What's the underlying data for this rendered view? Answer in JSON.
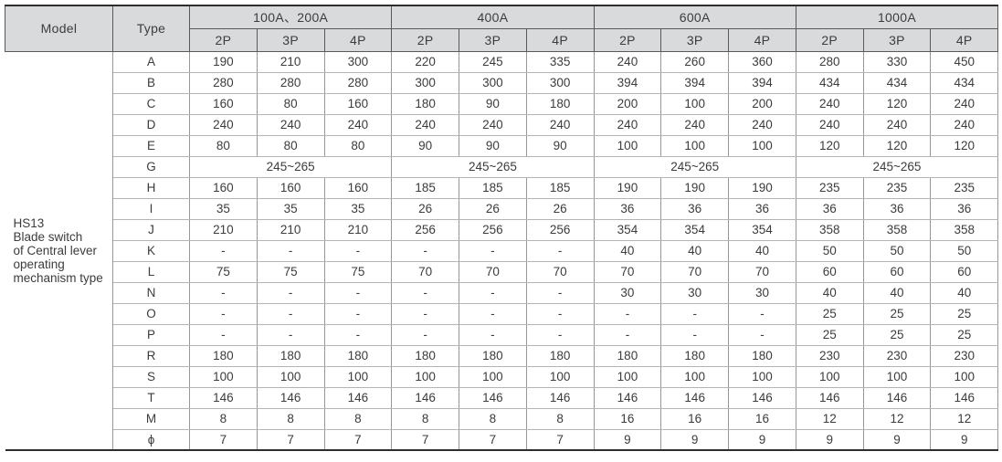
{
  "table": {
    "model_header": "Model",
    "type_header": "Type",
    "amp_groups": [
      "100A、200A",
      "400A",
      "600A",
      "1000A"
    ],
    "pole_headers": [
      "2P",
      "3P",
      "4P"
    ],
    "model_cell_lines": [
      "HS13",
      "Blade switch",
      "of Central lever",
      "operating",
      "mechanism type"
    ],
    "rows": [
      {
        "type": "A",
        "values": [
          "190",
          "210",
          "300",
          "220",
          "245",
          "335",
          "240",
          "260",
          "360",
          "280",
          "330",
          "450"
        ]
      },
      {
        "type": "B",
        "values": [
          "280",
          "280",
          "280",
          "300",
          "300",
          "300",
          "394",
          "394",
          "394",
          "434",
          "434",
          "434"
        ]
      },
      {
        "type": "C",
        "values": [
          "160",
          "80",
          "160",
          "180",
          "90",
          "180",
          "200",
          "100",
          "200",
          "240",
          "120",
          "240"
        ]
      },
      {
        "type": "D",
        "values": [
          "240",
          "240",
          "240",
          "240",
          "240",
          "240",
          "240",
          "240",
          "240",
          "240",
          "240",
          "240"
        ]
      },
      {
        "type": "E",
        "values": [
          "80",
          "80",
          "80",
          "90",
          "90",
          "90",
          "100",
          "100",
          "100",
          "120",
          "120",
          "120"
        ]
      },
      {
        "type": "G",
        "merged_value": "245~265"
      },
      {
        "type": "H",
        "values": [
          "160",
          "160",
          "160",
          "185",
          "185",
          "185",
          "190",
          "190",
          "190",
          "235",
          "235",
          "235"
        ]
      },
      {
        "type": "I",
        "values": [
          "35",
          "35",
          "35",
          "26",
          "26",
          "26",
          "36",
          "36",
          "36",
          "36",
          "36",
          "36"
        ]
      },
      {
        "type": "J",
        "values": [
          "210",
          "210",
          "210",
          "256",
          "256",
          "256",
          "354",
          "354",
          "354",
          "358",
          "358",
          "358"
        ]
      },
      {
        "type": "K",
        "values": [
          "-",
          "-",
          "-",
          "-",
          "-",
          "-",
          "40",
          "40",
          "40",
          "50",
          "50",
          "50"
        ]
      },
      {
        "type": "L",
        "values": [
          "75",
          "75",
          "75",
          "70",
          "70",
          "70",
          "70",
          "70",
          "70",
          "60",
          "60",
          "60"
        ]
      },
      {
        "type": "N",
        "values": [
          "-",
          "-",
          "-",
          "-",
          "-",
          "-",
          "30",
          "30",
          "30",
          "40",
          "40",
          "40"
        ]
      },
      {
        "type": "O",
        "values": [
          "-",
          "-",
          "-",
          "-",
          "-",
          "-",
          "-",
          "-",
          "-",
          "25",
          "25",
          "25"
        ]
      },
      {
        "type": "P",
        "values": [
          "-",
          "-",
          "-",
          "-",
          "-",
          "-",
          "-",
          "-",
          "-",
          "25",
          "25",
          "25"
        ]
      },
      {
        "type": "R",
        "values": [
          "180",
          "180",
          "180",
          "180",
          "180",
          "180",
          "180",
          "180",
          "180",
          "230",
          "230",
          "230"
        ]
      },
      {
        "type": "S",
        "values": [
          "100",
          "100",
          "100",
          "100",
          "100",
          "100",
          "100",
          "100",
          "100",
          "100",
          "100",
          "100"
        ]
      },
      {
        "type": "T",
        "values": [
          "146",
          "146",
          "146",
          "146",
          "146",
          "146",
          "146",
          "146",
          "146",
          "146",
          "146",
          "146"
        ]
      },
      {
        "type": "M",
        "values": [
          "8",
          "8",
          "8",
          "8",
          "8",
          "8",
          "16",
          "16",
          "16",
          "12",
          "12",
          "12"
        ]
      },
      {
        "type": "ϕ",
        "values": [
          "7",
          "7",
          "7",
          "7",
          "7",
          "7",
          "9",
          "9",
          "9",
          "9",
          "9",
          "9"
        ]
      }
    ],
    "colors": {
      "header_bg": "#d9dadb",
      "border_dark": "#2e2e30",
      "border_light": "#98989a",
      "text": "#3c3c3e"
    }
  }
}
